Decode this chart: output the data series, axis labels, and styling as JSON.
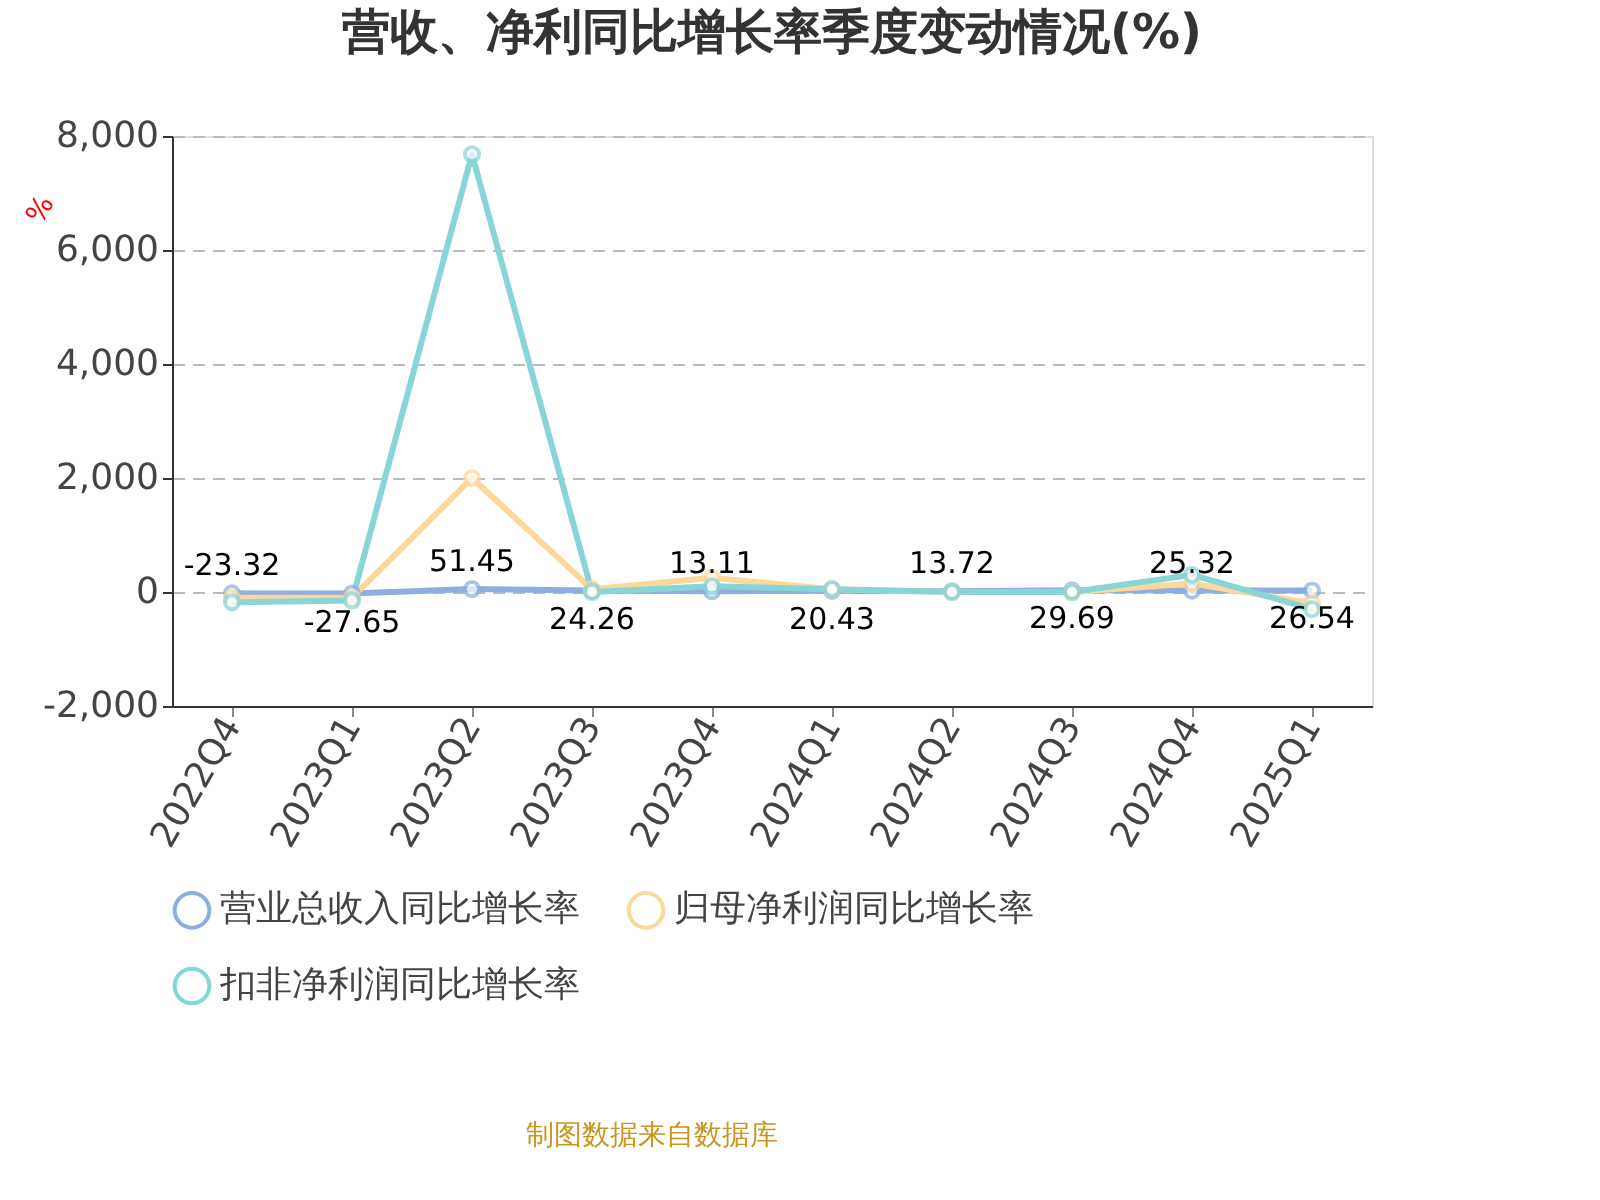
{
  "chart_data": {
    "type": "line",
    "title": "营收、净利同比增长率季度变动情况(%)",
    "ylabel": "%",
    "categories": [
      "2022Q4",
      "2023Q1",
      "2023Q2",
      "2023Q3",
      "2023Q4",
      "2024Q1",
      "2024Q2",
      "2024Q3",
      "2024Q4",
      "2025Q1"
    ],
    "series": [
      {
        "name": "营业总收入同比增长率",
        "color": "#8eaee0",
        "values": [
          -23.32,
          -27.65,
          51.45,
          24.26,
          13.11,
          20.43,
          13.72,
          29.69,
          25.32,
          26.54
        ],
        "value_labels": [
          "-23.32",
          "-27.65",
          "51.45",
          "24.26",
          "13.11",
          "20.43",
          "13.72",
          "29.69",
          "25.32",
          "26.54"
        ]
      },
      {
        "name": "归母净利润同比增长率",
        "color": "#fdd89a",
        "values": [
          -100,
          -100,
          2000,
          50,
          250,
          50,
          0,
          0,
          150,
          -200
        ]
      },
      {
        "name": "扣非净利润同比增长率",
        "color": "#88d5d8",
        "values": [
          -180,
          -150,
          7680,
          0,
          100,
          50,
          0,
          0,
          300,
          -300
        ]
      }
    ],
    "ylim": [
      -2000,
      8000
    ],
    "yticks": [
      {
        "value": -2000,
        "label": "-2,000"
      },
      0,
      {
        "value": 2000,
        "label": "2,000"
      },
      {
        "value": 4000,
        "label": "4,000"
      },
      {
        "value": 6000,
        "label": "6,000"
      },
      {
        "value": 8000,
        "label": "8,000"
      }
    ],
    "grid": "y",
    "legend": "bottom",
    "marker": "circle",
    "line_style": "solid",
    "annotations": [
      "制图数据来自数据库"
    ]
  }
}
